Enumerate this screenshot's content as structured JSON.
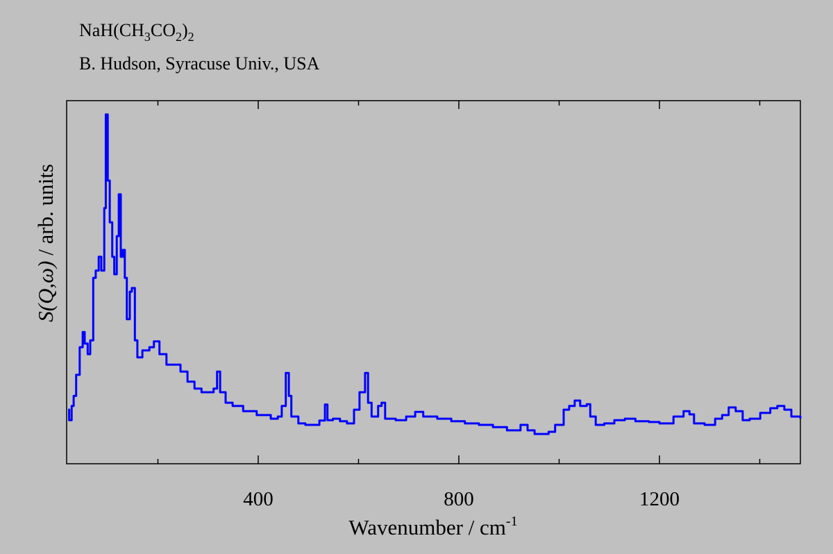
{
  "chart_data": {
    "type": "line",
    "title_parts": [
      "NaH(CH",
      "3",
      "CO",
      "2",
      ")",
      "2"
    ],
    "subtitle": "B. Hudson, Syracuse Univ., USA",
    "xlabel_base": "Wavenumber / cm",
    "xlabel_sup": "-1",
    "ylabel_italic": "S(Q,ω)",
    "ylabel_rest": " / arb. units",
    "xlim": [
      18,
      1481
    ],
    "ylim": [
      0,
      100
    ],
    "xticks_major": [
      400,
      800,
      1200
    ],
    "xtick_labels": [
      "400",
      "800",
      "1200"
    ],
    "xticks_minor": [
      200,
      600,
      1000,
      1400
    ],
    "grid": false,
    "series": [
      {
        "name": "S(Q,ω)",
        "color": "#0000ff",
        "x": [
          21,
          23,
          28,
          32,
          37,
          44,
          50,
          54,
          60,
          65,
          71,
          76,
          82,
          87,
          93,
          96,
          100,
          104,
          109,
          113,
          118,
          122,
          126,
          130,
          134,
          138,
          144,
          148,
          154,
          159,
          169,
          183,
          192,
          203,
          217,
          231,
          245,
          259,
          273,
          287,
          300,
          311,
          318,
          324,
          335,
          349,
          370,
          397,
          425,
          439,
          447,
          455,
          461,
          466,
          480,
          494,
          522,
          533,
          538,
          549,
          563,
          577,
          591,
          602,
          613,
          619,
          626,
          639,
          646,
          653,
          674,
          695,
          713,
          729,
          757,
          785,
          812,
          840,
          868,
          896,
          923,
          937,
          951,
          979,
          992,
          1009,
          1020,
          1031,
          1042,
          1055,
          1062,
          1073,
          1090,
          1110,
          1131,
          1152,
          1179,
          1200,
          1228,
          1248,
          1260,
          1269,
          1290,
          1311,
          1325,
          1338,
          1352,
          1366,
          1380,
          1401,
          1421,
          1435,
          1449,
          1463,
          1481
        ],
        "y": [
          14.9,
          12.0,
          15.9,
          18.7,
          24.5,
          32.1,
          36.3,
          33.1,
          30.2,
          34.0,
          51.2,
          53.2,
          57.0,
          53.2,
          70.4,
          96.2,
          78.0,
          66.5,
          57.0,
          52.2,
          62.7,
          74.2,
          57.0,
          58.9,
          51.2,
          39.8,
          47.4,
          48.4,
          34.0,
          29.3,
          31.2,
          32.1,
          33.7,
          30.2,
          27.3,
          27.3,
          25.4,
          22.6,
          20.7,
          19.7,
          19.7,
          20.7,
          25.4,
          19.7,
          16.8,
          15.9,
          14.5,
          13.4,
          12.4,
          13.0,
          15.9,
          25.0,
          18.7,
          13.0,
          11.1,
          10.7,
          11.9,
          16.3,
          12.0,
          12.4,
          11.7,
          11.1,
          14.9,
          19.7,
          25.0,
          16.8,
          13.0,
          15.9,
          16.8,
          12.4,
          12.0,
          13.0,
          14.3,
          13.0,
          12.4,
          11.7,
          11.1,
          10.7,
          10.1,
          9.2,
          10.7,
          9.2,
          8.2,
          8.8,
          10.7,
          14.9,
          15.9,
          17.4,
          15.9,
          16.4,
          13.0,
          10.7,
          11.1,
          12.0,
          12.4,
          11.7,
          11.5,
          11.1,
          13.0,
          14.5,
          13.6,
          11.1,
          10.7,
          12.4,
          13.4,
          15.5,
          14.5,
          12.0,
          12.4,
          14.0,
          15.3,
          15.9,
          14.9,
          13.0,
          12.4
        ]
      }
    ]
  }
}
